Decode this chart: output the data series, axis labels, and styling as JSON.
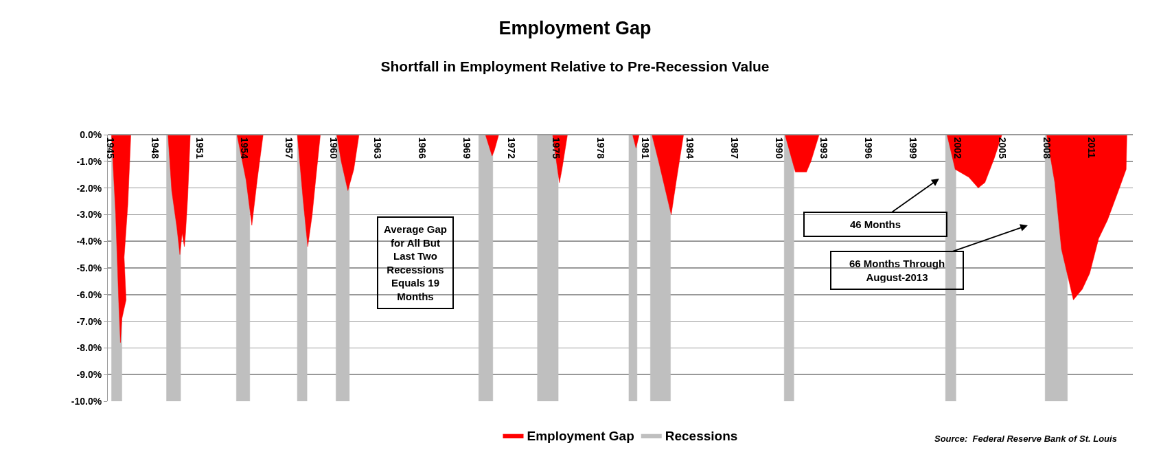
{
  "chart_data": {
    "type": "area",
    "title": "Employment Gap",
    "subtitle": "Shortfall in Employment Relative to Pre-Recession Value",
    "series": [
      {
        "name": "Employment Gap",
        "color": "#ff0000",
        "x": [
          1945.1,
          1945.38,
          1945.6,
          1945.7,
          1945.8,
          1946.08,
          1945.95,
          1946.2,
          1946.4,
          1948.9,
          1949.15,
          1949.5,
          1949.7,
          1949.85,
          1950.0,
          1950.08,
          1950.23,
          1950.4,
          1953.54,
          1954.15,
          1954.54,
          1954.9,
          1955.3,
          1957.6,
          1957.98,
          1958.3,
          1958.6,
          1958.85,
          1959.15,
          1960.25,
          1960.55,
          1961.0,
          1961.4,
          1961.75,
          1970.25,
          1970.7,
          1970.85,
          1971.15,
          1974.77,
          1975.23,
          1975.4,
          1975.77,
          1980.15,
          1980.38,
          1980.6,
          1981.45,
          1981.9,
          1982.75,
          1983.1,
          1983.58,
          1990.4,
          1991.1,
          1991.85,
          1992.15,
          1992.7,
          2001.3,
          2001.85,
          2002.77,
          2003.4,
          2003.85,
          2004.47,
          2005.0,
          2008.0,
          2008.55,
          2009.0,
          2009.8,
          2010.4,
          2010.9,
          2011.5,
          2012.1,
          2012.9,
          2013.35,
          2013.4
        ],
        "values": [
          0,
          -3.0,
          -6.5,
          -7.8,
          -6.9,
          -6.2,
          -4.6,
          -2.6,
          0,
          0,
          -2.1,
          -3.5,
          -4.5,
          -3.7,
          -4.2,
          -3.7,
          -2.3,
          0,
          0,
          -1.7,
          -3.4,
          -1.7,
          0,
          0,
          -2.4,
          -4.2,
          -3.0,
          -1.6,
          0,
          0,
          -1.0,
          -2.1,
          -1.3,
          0,
          0,
          -0.8,
          -0.6,
          0,
          0,
          -1.8,
          -1.3,
          0,
          0,
          -0.5,
          0,
          0,
          -1.0,
          -3.0,
          -1.7,
          0,
          0,
          -1.4,
          -1.4,
          -1.0,
          0,
          0,
          -1.3,
          -1.6,
          -2.0,
          -1.8,
          -0.9,
          0,
          0,
          -1.8,
          -4.3,
          -6.2,
          -5.8,
          -5.2,
          -3.9,
          -3.2,
          -2.0,
          -1.3,
          0
        ]
      },
      {
        "name": "Recessions",
        "color": "#bfbfbf",
        "x": [
          1945.1,
          1945.1,
          1945.8,
          1945.8,
          1948.8,
          1948.8,
          1949.75,
          1949.75,
          1953.5,
          1953.5,
          1954.4,
          1954.4,
          1957.6,
          1957.6,
          1958.25,
          1958.25,
          1960.2,
          1960.2,
          1961.1,
          1961.1,
          1969.8,
          1969.8,
          1970.75,
          1970.75,
          1973.75,
          1973.75,
          1975.15,
          1975.15,
          1979.9,
          1979.9,
          1980.45,
          1980.45,
          1981.35,
          1981.35,
          1982.7,
          1982.7,
          1990.35,
          1990.35,
          1991.0,
          1991.0,
          2001.2,
          2001.2,
          2001.9,
          2001.9,
          2007.9,
          2007.9,
          2009.4,
          2009.4
        ],
        "values": [
          0,
          -10,
          -10,
          0,
          0,
          -10,
          -10,
          0,
          0,
          -10,
          -10,
          0,
          0,
          -10,
          -10,
          0,
          0,
          -10,
          -10,
          0,
          0,
          -10,
          -10,
          0,
          0,
          -10,
          -10,
          0,
          0,
          -10,
          -10,
          0,
          0,
          -10,
          -10,
          0,
          0,
          -10,
          -10,
          0,
          0,
          -10,
          -10,
          0,
          0,
          -10,
          -10,
          0
        ]
      }
    ],
    "xlim": [
      1944.85,
      2013.8
    ],
    "xticks": [
      1945,
      1948,
      1951,
      1954,
      1957,
      1960,
      1963,
      1966,
      1969,
      1972,
      1975,
      1978,
      1981,
      1984,
      1987,
      1990,
      1993,
      1996,
      1999,
      2002,
      2005,
      2008,
      2011
    ],
    "ylim": [
      -10,
      0
    ],
    "yticks": [
      {
        "value": 0,
        "label": "0.0%"
      },
      {
        "value": -1,
        "label": "-1.0%"
      },
      {
        "value": -2,
        "label": "-2.0%"
      },
      {
        "value": -3,
        "label": "-3.0%"
      },
      {
        "value": -4,
        "label": "-4.0%"
      },
      {
        "value": -5,
        "label": "-5.0%"
      },
      {
        "value": -6,
        "label": "-6.0%"
      },
      {
        "value": -7,
        "label": "-7.0%"
      },
      {
        "value": -8,
        "label": "-8.0%"
      },
      {
        "value": -9,
        "label": "-9.0%"
      },
      {
        "value": -10,
        "label": "-10.0%"
      }
    ],
    "grid": "y",
    "legend": "bottom",
    "annotations": [
      "Average Gap for All But Last Two Recessions Equals 19 Months",
      "46 Months",
      "66 Months Through August-2013",
      "Source:  Federal Reserve Bank of St. Louis"
    ]
  }
}
